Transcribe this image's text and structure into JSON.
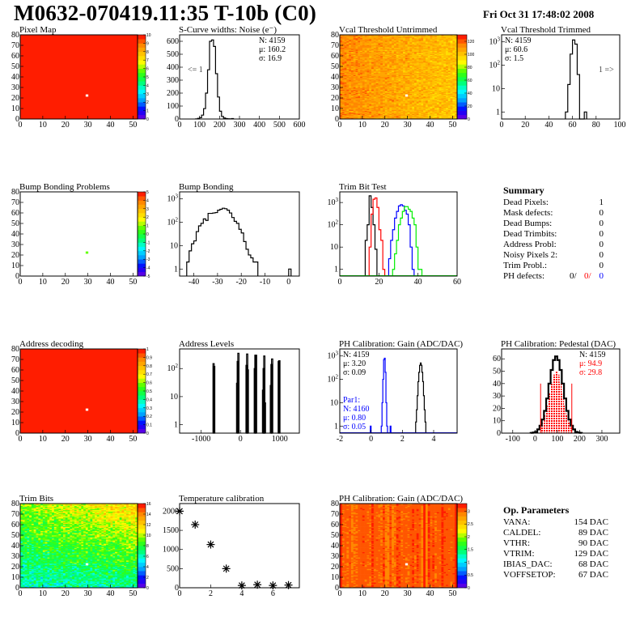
{
  "header": {
    "title": "M0632-070419.11:35 T-10b (C0)",
    "date": "Fri Oct 31 17:48:02 2008"
  },
  "palette_colors": [
    "#7000e0",
    "#0000ff",
    "#00a0ff",
    "#00ffff",
    "#00ff60",
    "#40ff00",
    "#ffff00",
    "#ffc000",
    "#ff8000",
    "#ff0000"
  ],
  "chart_data": [
    {
      "type": "heatmap",
      "title": "Pixel Map",
      "xlim": [
        0,
        52
      ],
      "ylim": [
        0,
        80
      ],
      "xticks": [
        0,
        10,
        20,
        30,
        40,
        50
      ],
      "yticks": [
        0,
        10,
        20,
        30,
        40,
        50,
        60,
        70,
        80
      ],
      "zlim": [
        0,
        10
      ],
      "zticks": [
        0,
        1,
        2,
        3,
        4,
        5,
        6,
        7,
        8,
        9,
        10
      ],
      "z_corners": {
        "bl": 10,
        "br": 10,
        "tl": 10,
        "tr": 10
      },
      "z_spread": 0,
      "empty_cells": [
        [
          29,
          22
        ]
      ]
    },
    {
      "type": "histogram",
      "title": "S-Curve widths: Noise (e⁻)",
      "xlim": [
        0,
        600
      ],
      "ylim": [
        0,
        650
      ],
      "log_y": false,
      "xticks": [
        0,
        100,
        200,
        300,
        400,
        500,
        600
      ],
      "yticks": [
        0,
        100,
        200,
        300,
        400,
        500,
        600
      ],
      "series": [
        {
          "color": "#000000",
          "x_start": 80,
          "bin_width": 10,
          "counts": [
            1,
            5,
            10,
            30,
            80,
            200,
            380,
            600,
            610,
            560,
            350,
            170,
            60,
            20,
            8,
            3,
            2,
            1,
            3
          ]
        }
      ],
      "stats": {
        "placement": "top-right",
        "lines": [
          {
            "text": "N: 4159",
            "color": "#000000"
          },
          {
            "text": "μ: 160.2",
            "color": "#000000"
          },
          {
            "text": "σ: 16.9",
            "color": "#000000"
          }
        ]
      },
      "annotation": "<= 1"
    },
    {
      "type": "heatmap",
      "title": "Vcal Threshold Untrimmed",
      "xlim": [
        0,
        52
      ],
      "ylim": [
        0,
        80
      ],
      "xticks": [
        0,
        10,
        20,
        30,
        40,
        50
      ],
      "yticks": [
        0,
        10,
        20,
        30,
        40,
        50,
        60,
        70,
        80
      ],
      "zlim": [
        0,
        130
      ],
      "zticks": [
        0,
        20,
        40,
        60,
        80,
        100,
        120
      ],
      "z_corners": {
        "bl": 113,
        "br": 99,
        "tl": 113,
        "tr": 101
      },
      "z_spread": 6,
      "empty_cells": [
        [
          29,
          22
        ]
      ]
    },
    {
      "type": "histogram",
      "title": "Vcal Threshold Trimmed",
      "xlim": [
        0,
        100
      ],
      "ylim": [
        0.5,
        2000
      ],
      "log_y": true,
      "xticks": [
        0,
        20,
        40,
        60,
        80,
        100
      ],
      "yticks": [
        1,
        10,
        100,
        1000
      ],
      "series": [
        {
          "color": "#000000",
          "x_start": 54,
          "bin_width": 2,
          "counts": [
            1,
            15,
            300,
            1200,
            800,
            40,
            0,
            0,
            1
          ]
        }
      ],
      "stats": {
        "placement": "top-left",
        "lines": [
          {
            "text": "N: 4159",
            "color": "#000000"
          },
          {
            "text": "μ: 60.6",
            "color": "#000000"
          },
          {
            "text": "σ:  1.5",
            "color": "#000000"
          }
        ]
      },
      "annotation": "1 =>"
    },
    {
      "type": "heatmap",
      "title": "Bump Bonding Problems",
      "xlim": [
        0,
        52
      ],
      "ylim": [
        0,
        80
      ],
      "xticks": [
        0,
        10,
        20,
        30,
        40,
        50
      ],
      "yticks": [
        0,
        10,
        20,
        30,
        40,
        50,
        60,
        70,
        80
      ],
      "zlim": [
        -5,
        5
      ],
      "zticks": [
        -5,
        -4,
        -3,
        -2,
        -1,
        0,
        1,
        2,
        3,
        4,
        5
      ],
      "z_corners": null,
      "z_spread": 0,
      "filled_cells": [
        [
          29,
          22,
          0.5
        ]
      ]
    },
    {
      "type": "histogram",
      "title": "Bump Bonding",
      "xlim": [
        -46,
        4.5
      ],
      "ylim": [
        0.5,
        2000
      ],
      "log_y": true,
      "xticks": [
        -40,
        -30,
        -20,
        -10,
        0
      ],
      "yticks": [
        1,
        10,
        100,
        1000
      ],
      "series": [
        {
          "color": "#000000",
          "x_start": -43,
          "bin_width": 1,
          "counts": [
            2,
            6,
            12,
            16,
            40,
            70,
            90,
            140,
            120,
            240,
            240,
            250,
            260,
            330,
            360,
            400,
            380,
            330,
            250,
            160,
            110,
            90,
            50,
            35,
            15,
            7,
            4,
            3,
            2,
            2
          ]
        },
        {
          "color": "#000000",
          "x_start": 0,
          "bin_width": 1,
          "counts": [
            1
          ]
        }
      ]
    },
    {
      "type": "histogram",
      "title": "Trim Bit Test",
      "xlim": [
        0,
        60
      ],
      "ylim": [
        0.5,
        3000
      ],
      "log_y": true,
      "xticks": [
        0,
        20,
        40,
        60
      ],
      "yticks": [
        1,
        10,
        100,
        1000
      ],
      "series": [
        {
          "color": "#000000",
          "x_start": 13,
          "bin_width": 1,
          "counts": [
            20,
            100,
            2000,
            600,
            100,
            8
          ]
        },
        {
          "color": "#ff0000",
          "x_start": 15,
          "bin_width": 1,
          "counts": [
            10,
            300,
            1400,
            1600,
            600,
            60,
            20,
            1
          ]
        },
        {
          "color": "#0000ff",
          "x_start": 25,
          "bin_width": 1,
          "counts": [
            3,
            20,
            60,
            200,
            400,
            700,
            800,
            700,
            450,
            300,
            100,
            10,
            1
          ]
        },
        {
          "color": "#00ee00",
          "x_start": 27,
          "bin_width": 1,
          "counts": [
            1,
            5,
            20,
            100,
            200,
            400,
            650,
            650,
            500,
            400,
            200,
            100,
            10,
            1,
            1
          ]
        }
      ]
    },
    {
      "type": "heatmap",
      "title": "Address decoding",
      "xlim": [
        0,
        52
      ],
      "ylim": [
        0,
        80
      ],
      "xticks": [
        0,
        10,
        20,
        30,
        40,
        50
      ],
      "yticks": [
        0,
        10,
        20,
        30,
        40,
        50,
        60,
        70,
        80
      ],
      "zlim": [
        0,
        1
      ],
      "zticks": [
        0,
        0.1,
        0.2,
        0.3,
        0.4,
        0.5,
        0.6,
        0.7,
        0.8,
        0.9,
        1
      ],
      "z_corners": {
        "bl": 1,
        "br": 1,
        "tl": 1,
        "tr": 1
      },
      "z_spread": 0,
      "empty_cells": [
        [
          29,
          22
        ]
      ]
    },
    {
      "type": "bar",
      "title": "Address Levels",
      "xlim": [
        -1550,
        1500
      ],
      "ylim": [
        0.5,
        500
      ],
      "log_y": true,
      "xticks": [
        -1000,
        0,
        1000
      ],
      "yticks": [
        1,
        10,
        100
      ],
      "bin_width": 16,
      "bars": [
        [
          -700,
          150
        ],
        [
          -684,
          120
        ],
        [
          -100,
          30
        ],
        [
          -84,
          180
        ],
        [
          -68,
          350
        ],
        [
          140,
          130
        ],
        [
          156,
          330
        ],
        [
          172,
          90
        ],
        [
          350,
          100
        ],
        [
          366,
          300
        ],
        [
          382,
          300
        ],
        [
          560,
          17
        ],
        [
          576,
          100
        ],
        [
          592,
          280
        ],
        [
          608,
          6
        ],
        [
          760,
          25
        ],
        [
          776,
          140
        ],
        [
          792,
          220
        ],
        [
          960,
          180
        ],
        [
          976,
          190
        ]
      ]
    },
    {
      "type": "histogram",
      "title": "PH Calibration: Gain (ADC/DAC)",
      "xlim": [
        -2,
        5.5
      ],
      "ylim": [
        0.5,
        2000
      ],
      "log_y": true,
      "xticks": [
        -2,
        0,
        2,
        4
      ],
      "yticks": [
        1,
        10,
        100,
        1000
      ],
      "series": [
        {
          "color": "#000000",
          "x_start": 2.85,
          "bin_width": 0.05,
          "counts": [
            1.5,
            5,
            20,
            80,
            200,
            400,
            500,
            400,
            200,
            80,
            20,
            5,
            1.5
          ]
        },
        {
          "color": "#0000ff",
          "x_start": 0.65,
          "bin_width": 0.05,
          "counts": [
            1,
            10,
            100,
            700,
            800,
            200,
            10,
            1
          ]
        },
        {
          "color": "#0000ff",
          "x_start": -0.05,
          "bin_width": 0.05,
          "counts": [
            1
          ]
        },
        {
          "color": "#0000ff",
          "x_start": 1.22,
          "bin_width": 0.05,
          "counts": [
            1
          ]
        }
      ],
      "stats": {
        "placement": "top-left",
        "lines": [
          {
            "text": "N: 4159",
            "color": "#000000"
          },
          {
            "text": "μ: 3.20",
            "color": "#000000"
          },
          {
            "text": "σ: 0.09",
            "color": "#000000"
          }
        ]
      },
      "stats2": {
        "placement": "bottom-left",
        "lines": [
          {
            "text": "Par1:",
            "color": "#0000ff"
          },
          {
            "text": "N: 4160",
            "color": "#0000ff"
          },
          {
            "text": "μ: 0.80",
            "color": "#0000ff"
          },
          {
            "text": "σ: 0.05",
            "color": "#0000ff"
          }
        ]
      }
    },
    {
      "type": "histogram",
      "title": "PH Calibration: Pedestal (DAC)",
      "xlim": [
        -150,
        380
      ],
      "ylim": [
        0,
        68
      ],
      "log_y": false,
      "xticks": [
        -100,
        0,
        100,
        200,
        300
      ],
      "yticks": [
        0,
        10,
        20,
        30,
        40,
        50,
        60
      ],
      "series": [
        {
          "color": "#000000",
          "x_start": -20,
          "bin_width": 10,
          "counts": [
            0.2,
            0.5,
            1,
            3,
            6,
            11,
            18,
            28,
            40,
            51,
            59,
            62,
            59,
            51,
            40,
            28,
            18,
            11,
            6,
            3,
            1,
            0.5,
            0.2
          ]
        }
      ],
      "fill_range": {
        "color": "#ff0000",
        "x": [
          25,
          165
        ]
      },
      "cut_lines": {
        "color": "#ff0000",
        "x": [
          25,
          165
        ],
        "height": 40
      },
      "stats": {
        "placement": "top-right",
        "lines": [
          {
            "text": "N: 4159",
            "color": "#000000"
          },
          {
            "text": "μ: 94.9",
            "color": "#ff0000"
          },
          {
            "text": "σ: 29.8",
            "color": "#ff0000"
          }
        ]
      }
    },
    {
      "type": "heatmap",
      "title": "Trim Bits",
      "xlim": [
        0,
        52
      ],
      "ylim": [
        0,
        80
      ],
      "xticks": [
        0,
        10,
        20,
        30,
        40,
        50
      ],
      "yticks": [
        0,
        10,
        20,
        30,
        40,
        50,
        60,
        70,
        80
      ],
      "zlim": [
        0,
        16
      ],
      "zticks": [
        0,
        2,
        4,
        6,
        8,
        10,
        12,
        14,
        16
      ],
      "z_corners": {
        "bl": 6,
        "br": 6.5,
        "tl": 9.5,
        "tr": 12
      },
      "z_spread": 1.4,
      "empty_cells": [
        [
          29,
          22
        ]
      ]
    },
    {
      "type": "scatter",
      "title": "Temperature calibration",
      "xlim": [
        0,
        7.7
      ],
      "ylim": [
        0,
        2200
      ],
      "xticks": [
        0,
        2,
        4,
        6
      ],
      "yticks": [
        0,
        500,
        1000,
        1500,
        2000
      ],
      "points": [
        [
          0,
          2000
        ],
        [
          1,
          1650
        ],
        [
          2,
          1130
        ],
        [
          3,
          500
        ],
        [
          4,
          60
        ],
        [
          5,
          80
        ],
        [
          6,
          60
        ],
        [
          7,
          70
        ]
      ],
      "marker": "star"
    },
    {
      "type": "heatmap",
      "title": "PH Calibration: Gain (ADC/DAC)",
      "xlim": [
        0,
        52
      ],
      "ylim": [
        0,
        80
      ],
      "xticks": [
        0,
        10,
        20,
        30,
        40,
        50
      ],
      "yticks": [
        0,
        10,
        20,
        30,
        40,
        50,
        60,
        70,
        80
      ],
      "zlim": [
        0,
        3.3
      ],
      "zticks": [
        0,
        0.5,
        1,
        1.5,
        2,
        2.5,
        3
      ],
      "z_corners": {
        "bl": 3.05,
        "br": 3.05,
        "tl": 3.05,
        "tr": 3.05
      },
      "z_spread": 0.06,
      "column_spread": 0.12,
      "empty_cells": [
        [
          29,
          22
        ]
      ]
    }
  ],
  "summary": {
    "title": "Summary",
    "rows": [
      {
        "label": "Dead Pixels:",
        "value": "1"
      },
      {
        "label": "Mask defects:",
        "value": "0"
      },
      {
        "label": "Dead Bumps:",
        "value": "0"
      },
      {
        "label": "Dead Trimbits:",
        "value": "0"
      },
      {
        "label": "Address Probl:",
        "value": "0"
      },
      {
        "label": "Noisy Pixels 2:",
        "value": "0"
      },
      {
        "label": "Trim Probl.:",
        "value": "0"
      }
    ],
    "ph_defects": {
      "label": "PH defects:",
      "v1": "0/",
      "v2": "0/",
      "v3": "0",
      "c2": "#ff0000",
      "c3": "#0000ff"
    }
  },
  "op_parameters": {
    "title": "Op. Parameters",
    "rows": [
      {
        "label": "VANA:",
        "value": "154 DAC"
      },
      {
        "label": "CALDEL:",
        "value": "89 DAC"
      },
      {
        "label": "VTHR:",
        "value": "90 DAC"
      },
      {
        "label": "VTRIM:",
        "value": "129 DAC"
      },
      {
        "label": "IBIAS_DAC:",
        "value": "68 DAC"
      },
      {
        "label": "VOFFSETOP:",
        "value": "67 DAC"
      }
    ]
  }
}
